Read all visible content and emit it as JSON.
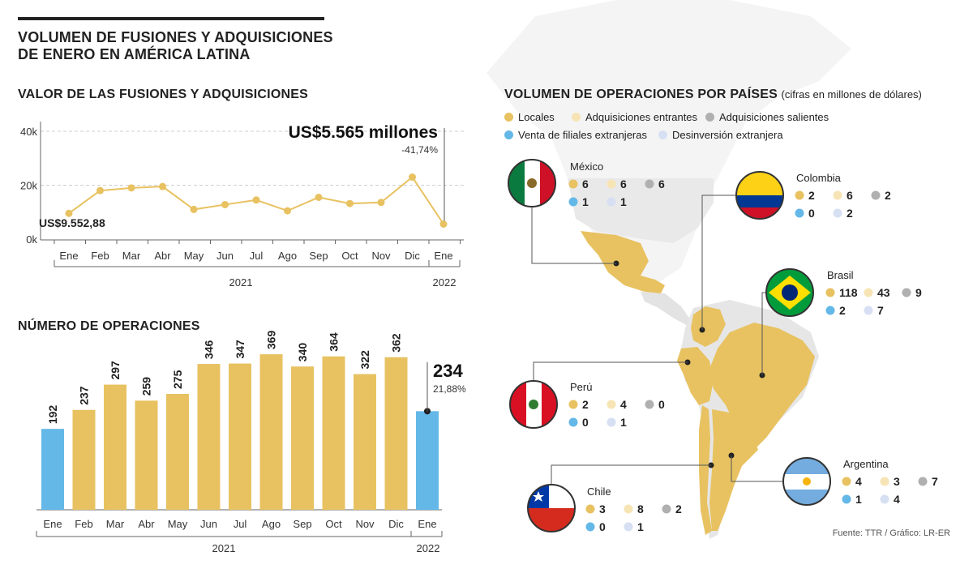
{
  "title_line1": "VOLUMEN DE FUSIONES Y ADQUISICIONES",
  "title_line2": "DE ENERO EN AMÉRICA LATINA",
  "source": "Fuente: TTR / Gráfico: LR-ER",
  "colors": {
    "gold": "#e8c261",
    "blue": "#64b8e8",
    "light_gold": "#f7e4b5",
    "gray": "#b0b0b0",
    "light_blue": "#d6e0f2",
    "land_gray": "#e6e6e6"
  },
  "chart_data": [
    {
      "type": "line",
      "title": "VALOR DE LAS FUSIONES Y ADQUISICIONES",
      "categories": [
        "Ene",
        "Feb",
        "Mar",
        "Abr",
        "May",
        "Jun",
        "Jul",
        "Ago",
        "Sep",
        "Oct",
        "Nov",
        "Dic",
        "Ene"
      ],
      "year_labels": [
        "2021",
        "2022"
      ],
      "values": [
        9552.88,
        18000,
        19000,
        19500,
        11000,
        12800,
        14500,
        10500,
        15500,
        13200,
        13600,
        23000,
        5565
      ],
      "yticks": [
        "0k",
        "20k",
        "40k"
      ],
      "ylim": [
        0,
        40000
      ],
      "grid": true,
      "start_label": "US$9.552,88",
      "end_label": "US$5.565 millones",
      "end_change": "-41,74%"
    },
    {
      "type": "bar",
      "title": "NÚMERO DE OPERACIONES",
      "categories": [
        "Ene",
        "Feb",
        "Mar",
        "Abr",
        "May",
        "Jun",
        "Jul",
        "Ago",
        "Sep",
        "Oct",
        "Nov",
        "Dic",
        "Ene"
      ],
      "year_labels": [
        "2021",
        "2022"
      ],
      "values": [
        192,
        237,
        297,
        259,
        275,
        346,
        347,
        369,
        340,
        364,
        322,
        362,
        234
      ],
      "highlight": [
        true,
        false,
        false,
        false,
        false,
        false,
        false,
        false,
        false,
        false,
        false,
        false,
        true
      ],
      "last_change": "21,88%",
      "ylim": [
        0,
        400
      ]
    }
  ],
  "map": {
    "title": "VOLUMEN DE OPERACIONES POR PAÍSES",
    "subtitle": "(cifras en millones de dólares)",
    "legend": [
      {
        "label": "Locales",
        "color": "#e8c261"
      },
      {
        "label": "Adquisiciones entrantes",
        "color": "#f7e4b5"
      },
      {
        "label": "Adquisiciones salientes",
        "color": "#b0b0b0"
      },
      {
        "label": "Venta de filiales extranjeras",
        "color": "#64b8e8"
      },
      {
        "label": "Desinversión extranjera",
        "color": "#d6e0f2"
      }
    ],
    "countries": [
      {
        "name": "México",
        "locales": "6",
        "entrantes": "6",
        "salientes": "6",
        "venta": "1",
        "desinversion": "1"
      },
      {
        "name": "Colombia",
        "locales": "2",
        "entrantes": "6",
        "salientes": "2",
        "venta": "0",
        "desinversion": "2"
      },
      {
        "name": "Brasil",
        "locales": "118",
        "entrantes": "43",
        "salientes": "9",
        "venta": "2",
        "desinversion": "7"
      },
      {
        "name": "Perú",
        "locales": "2",
        "entrantes": "4",
        "salientes": "0",
        "venta": "0",
        "desinversion": "1"
      },
      {
        "name": "Argentina",
        "locales": "4",
        "entrantes": "3",
        "salientes": "7",
        "venta": "1",
        "desinversion": "4"
      },
      {
        "name": "Chile",
        "locales": "3",
        "entrantes": "8",
        "salientes": "2",
        "venta": "0",
        "desinversion": "1"
      }
    ]
  }
}
